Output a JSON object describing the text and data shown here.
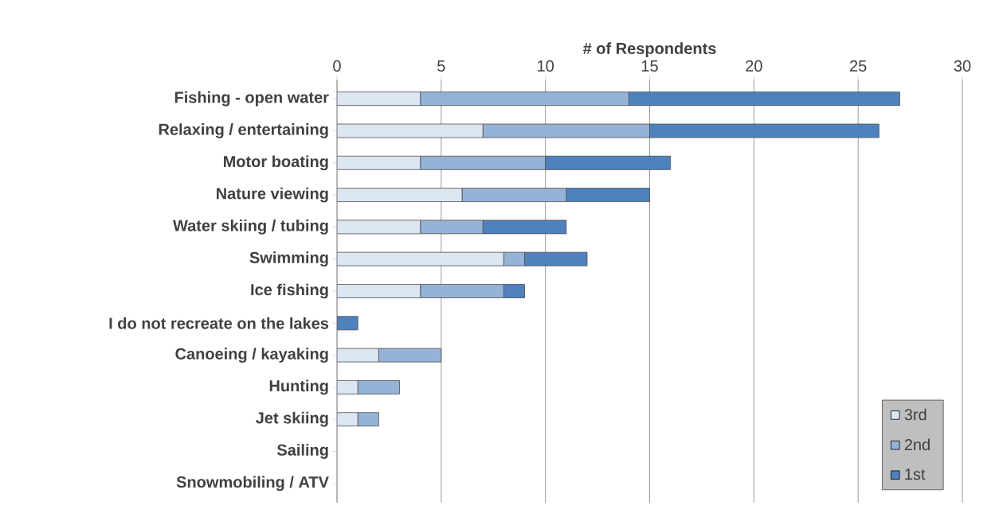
{
  "chart_data": {
    "type": "bar",
    "orientation": "horizontal",
    "stacked": true,
    "xlabel": "# of Respondents",
    "categories": [
      "Fishing - open water",
      "Relaxing / entertaining",
      "Motor boating",
      "Nature viewing",
      "Water skiing / tubing",
      "Swimming",
      "Ice fishing",
      "I do not recreate on the lakes",
      "Canoeing / kayaking",
      "Hunting",
      "Jet skiing",
      "Sailing",
      "Snowmobiling / ATV"
    ],
    "series": [
      {
        "name": "3rd",
        "color": "#dce6f2",
        "values": [
          4,
          7,
          4,
          6,
          4,
          8,
          4,
          0,
          2,
          1,
          1,
          0,
          0
        ]
      },
      {
        "name": "2nd",
        "color": "#95b3d7",
        "values": [
          10,
          8,
          6,
          5,
          3,
          1,
          4,
          0,
          3,
          2,
          1,
          0,
          0
        ]
      },
      {
        "name": "1st",
        "color": "#4f81bd",
        "values": [
          13,
          11,
          6,
          4,
          4,
          3,
          1,
          1,
          0,
          0,
          0,
          0,
          0
        ]
      }
    ],
    "xlim": [
      0,
      30
    ],
    "xticks": [
      0,
      5,
      10,
      15,
      20,
      25,
      30
    ],
    "grid": "x",
    "legend": "bottom right"
  }
}
